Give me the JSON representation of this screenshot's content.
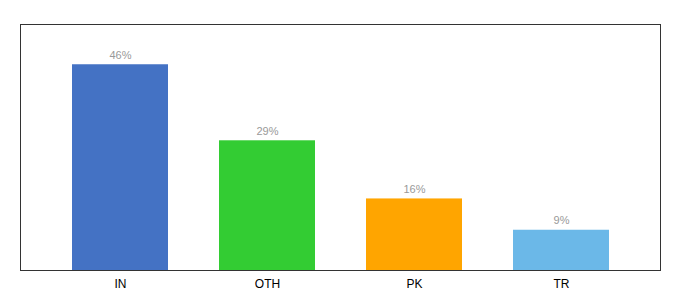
{
  "chart_data": {
    "type": "bar",
    "categories": [
      "IN",
      "OTH",
      "PK",
      "TR"
    ],
    "values": [
      46,
      29,
      16,
      9
    ],
    "value_labels": [
      "46%",
      "29%",
      "16%",
      "9%"
    ],
    "colors": [
      "#4472C4",
      "#33CC33",
      "#FFA500",
      "#6BB8E8"
    ],
    "ylim": [
      0,
      55
    ],
    "data_labels": true,
    "tick_labels": "x",
    "grid": false
  }
}
